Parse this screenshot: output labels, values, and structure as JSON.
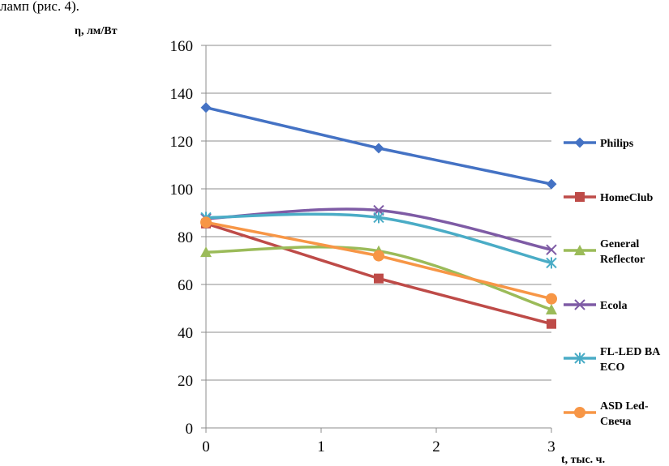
{
  "caption": "ламп (рис. 4).",
  "chart_data": {
    "type": "line",
    "title": "",
    "xlabel": "t, тыс. ч.",
    "ylabel": "η, лм/Вт",
    "xlim": [
      0,
      3
    ],
    "ylim": [
      0,
      160
    ],
    "xticks": [
      0,
      1,
      2,
      3
    ],
    "yticks": [
      0,
      20,
      40,
      60,
      80,
      100,
      120,
      140,
      160
    ],
    "gridlines": "horizontal",
    "legend_position": "right",
    "x": [
      0,
      1.5,
      3
    ],
    "series": [
      {
        "name": "Philips",
        "label_lines": [
          "Philips"
        ],
        "values": [
          134,
          117,
          102
        ],
        "color": "#4472C4",
        "marker": "diamond",
        "smooth": false
      },
      {
        "name": "HomeClub",
        "label_lines": [
          "HomeClub"
        ],
        "values": [
          85.5,
          62.5,
          43.5
        ],
        "color": "#BE4B48",
        "marker": "square",
        "smooth": false
      },
      {
        "name": "General Reflector",
        "label_lines": [
          "General",
          "Reflector"
        ],
        "values": [
          73.5,
          74,
          49.5
        ],
        "color": "#9BBB59",
        "marker": "triangle",
        "smooth": true
      },
      {
        "name": "Ecola",
        "label_lines": [
          "Ecola"
        ],
        "values": [
          87.5,
          91,
          74.5
        ],
        "color": "#7E5BA5",
        "marker": "x",
        "smooth": true
      },
      {
        "name": "FL-LED BA ECO",
        "label_lines": [
          "FL-LED BA",
          "ECO"
        ],
        "values": [
          88,
          88,
          69
        ],
        "color": "#4AACC6",
        "marker": "star",
        "smooth": true
      },
      {
        "name": "ASD Led-Свеча",
        "label_lines": [
          "ASD Led-",
          "Свеча"
        ],
        "values": [
          86,
          72,
          54
        ],
        "color": "#F79646",
        "marker": "circle",
        "smooth": false
      }
    ]
  }
}
